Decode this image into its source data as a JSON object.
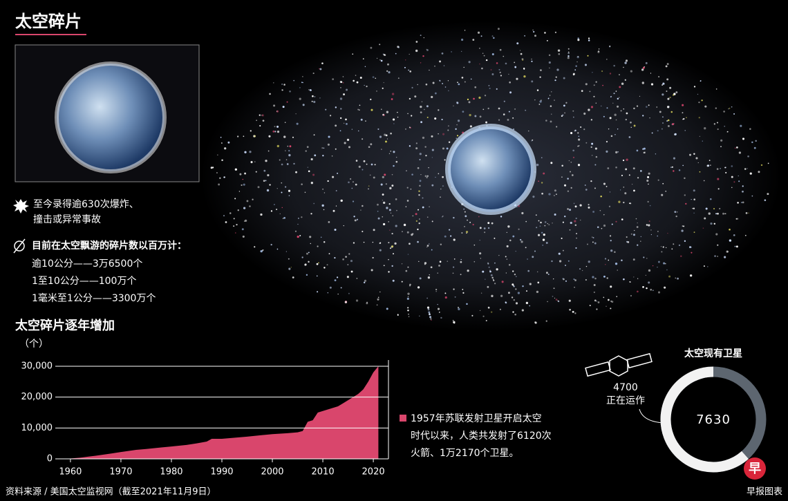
{
  "header": {
    "title": "太空碎片"
  },
  "explosion": [
    "至今录得逾630次爆炸、",
    "撞击或异常事故"
  ],
  "debris": {
    "heading": "目前在太空飘游的碎片数以百万计：",
    "items": [
      "逾10公分——3万6500个",
      "1至10公分——100万个",
      "1毫米至1公分——3300万个"
    ]
  },
  "chart_data": [
    {
      "type": "area",
      "title": "太空碎片逐年增加",
      "y_label": "（个）",
      "color": "#d9466c",
      "x": [
        1957,
        1960,
        1962,
        1965,
        1968,
        1970,
        1973,
        1975,
        1978,
        1980,
        1983,
        1985,
        1987,
        1988,
        1990,
        1993,
        1995,
        1998,
        2000,
        2003,
        2005,
        2006,
        2007,
        2008,
        2009,
        2010,
        2011,
        2012,
        2013,
        2014,
        2015,
        2016,
        2017,
        2018,
        2019,
        2020,
        2021
      ],
      "values": [
        0,
        100,
        400,
        1000,
        1700,
        2200,
        2900,
        3200,
        3700,
        4000,
        4500,
        5000,
        5600,
        6500,
        6500,
        6900,
        7200,
        7700,
        8000,
        8300,
        8600,
        9000,
        12000,
        12500,
        15000,
        15500,
        16000,
        16500,
        17000,
        18000,
        19000,
        20000,
        21000,
        22500,
        25000,
        28000,
        30000
      ],
      "xlim": [
        1957,
        2023
      ],
      "xticks": [
        1960,
        1970,
        1980,
        1990,
        2000,
        2010,
        2020
      ],
      "ylim": [
        0,
        32000
      ],
      "yticks": [
        0,
        {
          "value": 10000,
          "label": "10,000"
        },
        {
          "value": 20000,
          "label": "20,000"
        },
        {
          "value": 30000,
          "label": "30,000"
        }
      ],
      "grid": true,
      "annotation": [
        "1957年苏联发射卫星开启太空",
        "时代以来，人类共发射了6120次",
        "火箭、1万2170个卫星。"
      ]
    },
    {
      "type": "donut",
      "title": "太空现有卫星",
      "total": 7630,
      "categories": [
        "正在运作"
      ],
      "values": [
        4700
      ],
      "colors": [
        "#f2f2f2",
        "#5d6670"
      ]
    }
  ],
  "source": "资料来源 / 美国太空监视网（截至2021年11月9日）",
  "credit": "早报图表",
  "logo": "早"
}
